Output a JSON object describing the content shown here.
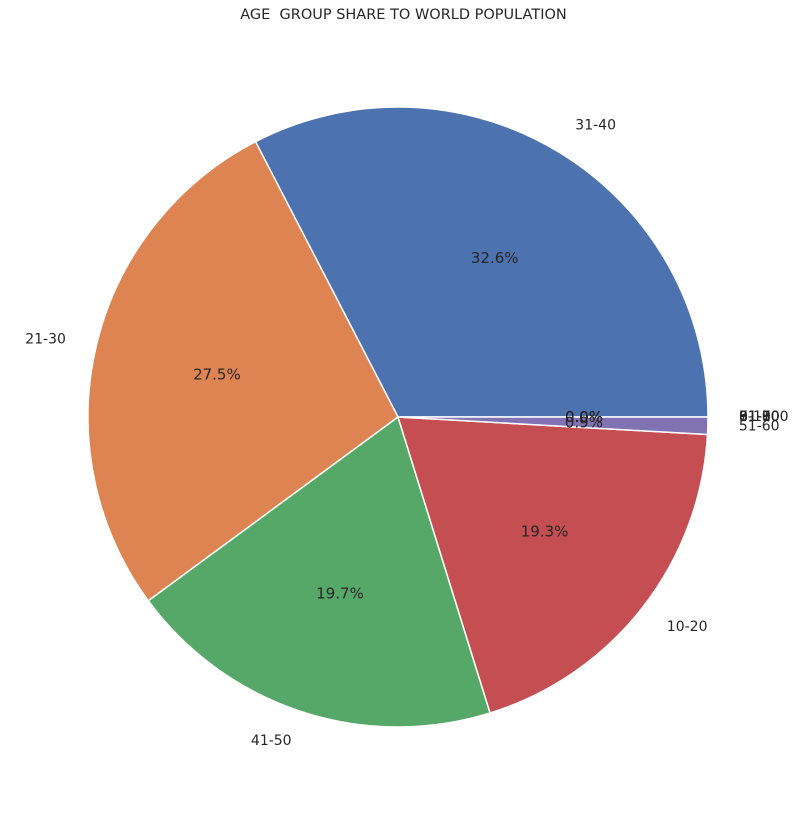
{
  "chart_data": {
    "type": "pie",
    "title": "AGE  GROUP SHARE TO WORLD POPULATION",
    "start_angle_deg": 0,
    "direction": "counterclockwise",
    "slices": [
      {
        "label": "31-40",
        "percent_label": "32.6%",
        "value": 32.6,
        "color": "#4c72b0"
      },
      {
        "label": "21-30",
        "percent_label": "27.5%",
        "value": 27.5,
        "color": "#dd8452"
      },
      {
        "label": "41-50",
        "percent_label": "19.7%",
        "value": 19.7,
        "color": "#55a868"
      },
      {
        "label": "10-20",
        "percent_label": "19.3%",
        "value": 19.3,
        "color": "#c44e52"
      },
      {
        "label": "51-60",
        "percent_label": "0.9%",
        "value": 0.9,
        "color": "#8172b3"
      },
      {
        "label": "61-70",
        "percent_label": "0.0%",
        "value": 0.0,
        "color": "#937860"
      },
      {
        "label": "71-80",
        "percent_label": "0.0%",
        "value": 0.0,
        "color": "#da8bc3"
      },
      {
        "label": "81-90",
        "percent_label": "0.0%",
        "value": 0.0,
        "color": "#8c8c8c"
      },
      {
        "label": "91-100",
        "percent_label": "0.0%",
        "value": 0.0,
        "color": "#ccb974"
      },
      {
        "label": "0-10",
        "percent_label": "0.0%",
        "value": 0.0,
        "color": "#64b5cd"
      }
    ]
  }
}
